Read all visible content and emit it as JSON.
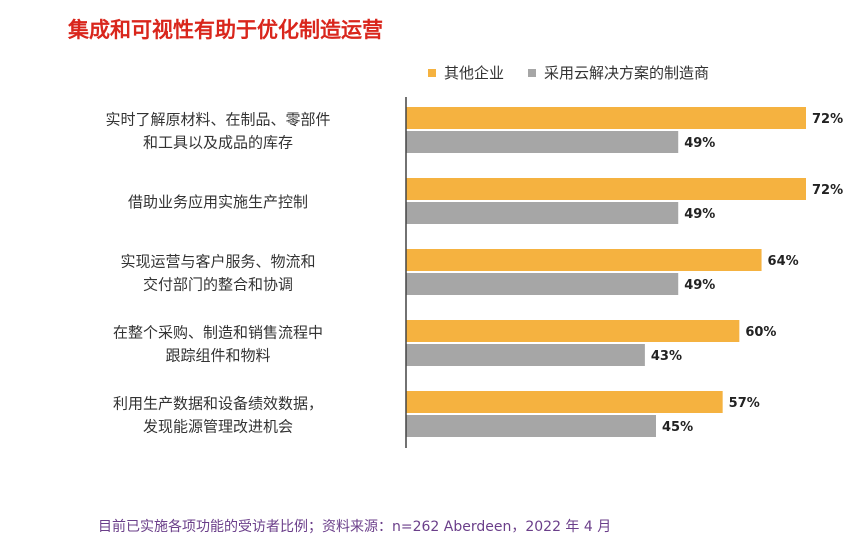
{
  "title": "集成和可视性有助于优化制造运营",
  "legend": [
    {
      "label": "其他企业",
      "color": "#F5B240"
    },
    {
      "label": "采用云解决方案的制造商",
      "color": "#A6A6A6"
    }
  ],
  "footnote": "目前已实施各项功能的受访者比例；资料来源：n=262 Aberdeen，2022 年 4 月",
  "chart_data": {
    "type": "bar",
    "orientation": "horizontal",
    "categories": [
      [
        "实时了解原材料、在制品、零部件",
        "和工具以及成品的库存"
      ],
      [
        "借助业务应用实施生产控制"
      ],
      [
        "实现运营与客户服务、物流和",
        "交付部门的整合和协调"
      ],
      [
        "在整个采购、制造和销售流程中",
        "跟踪组件和物料"
      ],
      [
        "利用生产数据和设备绩效数据，",
        "发现能源管理改进机会"
      ]
    ],
    "series": [
      {
        "name": "其他企业",
        "color": "#F5B240",
        "values": [
          72,
          72,
          64,
          60,
          57
        ],
        "labels": [
          "72%",
          "72%",
          "64%",
          "60%",
          "57%"
        ]
      },
      {
        "name": "采用云解决方案的制造商",
        "color": "#A6A6A6",
        "values": [
          49,
          49,
          49,
          43,
          45
        ],
        "labels": [
          "49%",
          "49%",
          "49%",
          "43%",
          "45%"
        ]
      }
    ],
    "xlim": [
      0,
      72
    ],
    "grid": false
  }
}
